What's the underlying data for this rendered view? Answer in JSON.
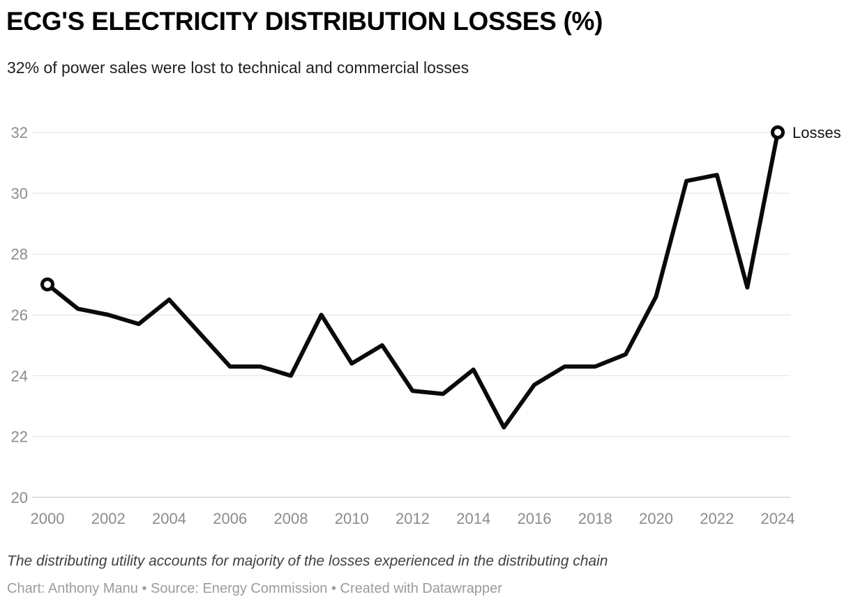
{
  "header": {
    "title": "ECG'S ELECTRICITY DISTRIBUTION LOSSES (%)",
    "subtitle": "32% of power sales were lost to technical and commercial losses"
  },
  "chart_data": {
    "type": "line",
    "title": "ECG'S ELECTRICITY DISTRIBUTION LOSSES (%)",
    "subtitle": "32% of power sales were lost to technical and commercial losses",
    "x": [
      2000,
      2001,
      2002,
      2003,
      2004,
      2005,
      2006,
      2007,
      2008,
      2009,
      2010,
      2011,
      2012,
      2013,
      2014,
      2015,
      2016,
      2017,
      2018,
      2019,
      2020,
      2021,
      2022,
      2023,
      2024
    ],
    "series": [
      {
        "name": "Losses",
        "values": [
          27.0,
          26.2,
          26.0,
          25.7,
          26.5,
          25.4,
          24.3,
          24.3,
          24.0,
          26.0,
          24.4,
          25.0,
          23.5,
          23.4,
          24.2,
          22.3,
          23.7,
          24.3,
          24.3,
          24.7,
          26.6,
          30.4,
          30.6,
          26.9,
          32.0
        ]
      }
    ],
    "xlabel": "",
    "ylabel": "",
    "ylim": [
      20,
      32
    ],
    "yticks": [
      20,
      22,
      24,
      26,
      28,
      30,
      32
    ],
    "xticks": [
      2000,
      2002,
      2004,
      2006,
      2008,
      2010,
      2012,
      2014,
      2016,
      2018,
      2020,
      2022,
      2024
    ],
    "grid": "horizontal",
    "legend": "line-end-label",
    "end_label": "Losses",
    "endpoint_markers": true
  },
  "footer": {
    "note": "The distributing utility accounts for majority of the losses experienced in the distributing chain",
    "credits": "Chart: Anthony Manu • Source: Energy Commission • Created with Datawrapper"
  },
  "colors": {
    "line": "#0a0a0a",
    "grid": "#e4e4e4",
    "axis_baseline": "#c9c9c9",
    "tick_label": "#8c8c8c",
    "end_label": "#111111",
    "marker_fill": "#ffffff"
  }
}
